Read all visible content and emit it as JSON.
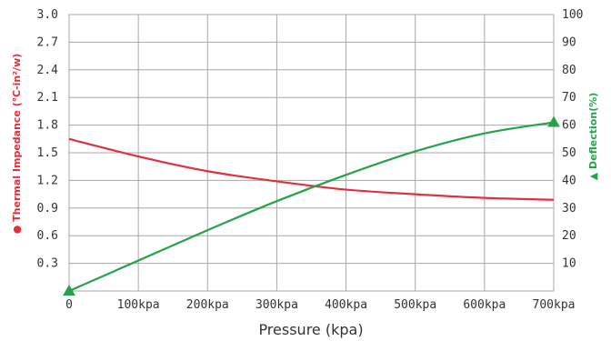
{
  "chart_data": {
    "type": "line",
    "xlabel": "Pressure (kpa)",
    "x_ticks": [
      "0",
      "100kpa",
      "200kpa",
      "300kpa",
      "400kpa",
      "500kpa",
      "600kpa",
      "700kpa"
    ],
    "x_values": [
      0,
      100,
      200,
      300,
      400,
      500,
      600,
      700
    ],
    "xlim": [
      0,
      700
    ],
    "y_left": {
      "label": "Thermal Impedance (℃-in²/w)",
      "label_marker": "●",
      "ylim": [
        0,
        3.0
      ],
      "ticks": [
        "0.3",
        "0.6",
        "0.9",
        "1.2",
        "1.5",
        "1.8",
        "2.1",
        "2.4",
        "2.7",
        "3.0"
      ]
    },
    "y_right": {
      "label": "Deflection(%)",
      "label_marker": "▲",
      "ylim": [
        0,
        100
      ],
      "ticks": [
        "10",
        "20",
        "30",
        "40",
        "50",
        "60",
        "70",
        "80",
        "90",
        "100"
      ]
    },
    "grid": true,
    "series": [
      {
        "name": "Thermal Impedance (℃-in²/w)",
        "axis": "left",
        "color": "#e0303c",
        "marker": "none",
        "x": [
          0,
          100,
          200,
          300,
          400,
          500,
          600,
          700
        ],
        "y": [
          1.65,
          1.46,
          1.3,
          1.19,
          1.1,
          1.05,
          1.01,
          0.99
        ]
      },
      {
        "name": "Deflection(%)",
        "axis": "right",
        "color": "#26a24a",
        "marker": "triangle",
        "marker_points": [
          0,
          700
        ],
        "x": [
          0,
          100,
          200,
          300,
          400,
          500,
          600,
          700
        ],
        "y": [
          0,
          11,
          22,
          32.5,
          42,
          50.5,
          57,
          61
        ]
      }
    ]
  }
}
